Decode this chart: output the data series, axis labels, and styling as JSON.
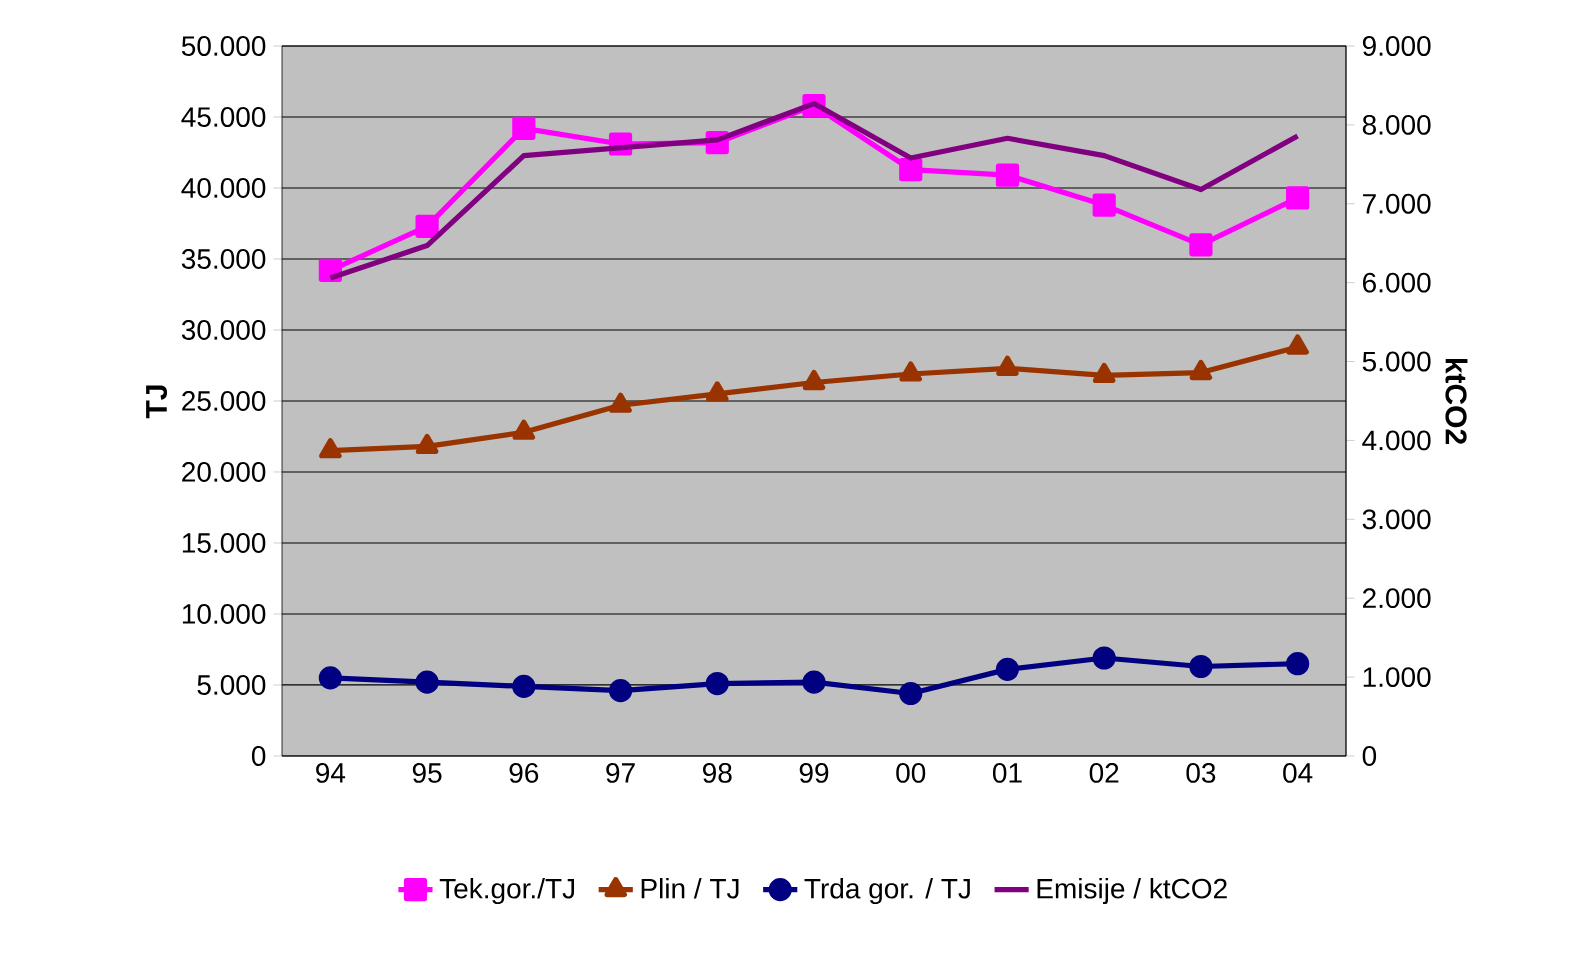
{
  "chart_data": {
    "type": "line",
    "ylabel": "TJ",
    "y2label": "ktCO2",
    "categories": [
      "94",
      "95",
      "96",
      "97",
      "98",
      "99",
      "00",
      "01",
      "02",
      "03",
      "04"
    ],
    "ylim": [
      0,
      50000
    ],
    "yticks": [
      {
        "value": 0,
        "label": "0"
      },
      {
        "value": 5000,
        "label": "5.000"
      },
      {
        "value": 10000,
        "label": "10.000"
      },
      {
        "value": 15000,
        "label": "15.000"
      },
      {
        "value": 20000,
        "label": "20.000"
      },
      {
        "value": 25000,
        "label": "25.000"
      },
      {
        "value": 30000,
        "label": "30.000"
      },
      {
        "value": 35000,
        "label": "35.000"
      },
      {
        "value": 40000,
        "label": "40.000"
      },
      {
        "value": 45000,
        "label": "45.000"
      },
      {
        "value": 50000,
        "label": "50.000"
      }
    ],
    "y2lim": [
      0,
      9000
    ],
    "y2ticks": [
      {
        "value": 0,
        "label": "0"
      },
      {
        "value": 1000,
        "label": "1.000"
      },
      {
        "value": 2000,
        "label": "2.000"
      },
      {
        "value": 3000,
        "label": "3.000"
      },
      {
        "value": 4000,
        "label": "4.000"
      },
      {
        "value": 5000,
        "label": "5.000"
      },
      {
        "value": 6000,
        "label": "6.000"
      },
      {
        "value": 7000,
        "label": "7.000"
      },
      {
        "value": 8000,
        "label": "8.000"
      },
      {
        "value": 9000,
        "label": "9.000"
      }
    ],
    "grid": "y",
    "legend": "bottom",
    "series": [
      {
        "name": "Tek.gor./TJ",
        "color": "#ff00ff",
        "marker": "square",
        "values": [
          34200,
          37300,
          44200,
          43100,
          43200,
          45800,
          41300,
          40900,
          38800,
          36000,
          39300
        ]
      },
      {
        "name": "Plin / TJ",
        "color": "#993300",
        "marker": "triangle",
        "values": [
          21500,
          21800,
          22800,
          24700,
          25500,
          26300,
          26900,
          27300,
          26800,
          27000,
          28800
        ]
      },
      {
        "name": "Trda gor. / TJ",
        "color": "#000080",
        "marker": "circle",
        "values": [
          5500,
          5200,
          4900,
          4600,
          5100,
          5200,
          4400,
          6100,
          6900,
          6300,
          6500
        ]
      },
      {
        "name": "Emisije / ktCO2",
        "color": "#800080",
        "marker": "none",
        "axis": "y2",
        "values": [
          6060,
          6470,
          7610,
          7710,
          7810,
          8270,
          7580,
          7830,
          7610,
          7180,
          7860
        ]
      }
    ]
  }
}
